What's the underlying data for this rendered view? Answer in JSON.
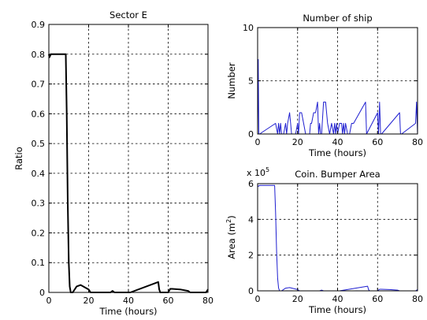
{
  "chart_data": [
    {
      "type": "line",
      "title": "Sector E",
      "xlabel": "Time (hours)",
      "ylabel": "Ratio",
      "xlim": [
        0,
        80
      ],
      "ylim": [
        0,
        0.9
      ],
      "xticks": [
        "0",
        "20",
        "40",
        "60",
        "80"
      ],
      "yticks": [
        "0",
        "0.1",
        "0.2",
        "0.3",
        "0.4",
        "0.5",
        "0.6",
        "0.7",
        "0.8",
        "0.9"
      ],
      "grid": true,
      "series": [
        {
          "color": "#000000",
          "x": [
            0,
            0.3,
            1,
            5,
            8.5,
            9,
            9.5,
            10,
            10.5,
            11,
            12,
            14,
            16,
            20,
            21,
            22,
            31,
            32,
            33,
            40,
            41,
            55,
            55.5,
            56,
            60,
            61,
            62,
            66,
            70,
            71,
            72,
            79,
            80
          ],
          "y": [
            0.8,
            0.79,
            0.8,
            0.8,
            0.8,
            0.6,
            0.3,
            0.1,
            0.02,
            0,
            0,
            0.02,
            0.025,
            0.01,
            0,
            0,
            0,
            0.005,
            0,
            0,
            0,
            0.035,
            0.01,
            0,
            0,
            0.012,
            0.012,
            0.01,
            0.005,
            0,
            0,
            0,
            0.01
          ]
        }
      ]
    },
    {
      "type": "line",
      "title": "Number of ship",
      "xlabel": "Time (hours)",
      "ylabel": "Number",
      "xlim": [
        0,
        80
      ],
      "ylim": [
        0,
        10
      ],
      "xticks": [
        "0",
        "20",
        "40",
        "60",
        "80"
      ],
      "yticks": [
        "0",
        "5",
        "10"
      ],
      "grid": true,
      "series": [
        {
          "color": "#1f1fd0",
          "x": [
            0,
            0.3,
            0.6,
            1,
            9,
            10,
            10.5,
            11,
            11.5,
            12,
            13,
            14,
            14.5,
            15,
            16,
            16.5,
            17,
            18,
            19,
            20,
            20.5,
            21,
            22,
            23,
            24,
            26,
            26.5,
            27,
            28,
            29,
            30,
            30.5,
            31,
            31.5,
            32,
            33,
            34,
            35,
            36,
            37,
            38,
            38.5,
            39,
            39.5,
            40,
            41,
            42,
            42.5,
            43,
            43.5,
            44,
            45,
            46,
            47,
            48,
            54,
            54.5,
            60,
            60.5,
            61,
            61.5,
            62,
            71,
            71.5,
            72,
            79,
            79.5,
            80
          ],
          "y": [
            0,
            7,
            0,
            0,
            1,
            0,
            1,
            0,
            1,
            0,
            0,
            1,
            0,
            1,
            2,
            1,
            0,
            0,
            0,
            1,
            0,
            2,
            2,
            1,
            0,
            0,
            1,
            1,
            2,
            2,
            3,
            0,
            1,
            0,
            0,
            3,
            3,
            1,
            0,
            1,
            0,
            1,
            0,
            1,
            0,
            1,
            1,
            0,
            1,
            0,
            1,
            0,
            0,
            1,
            1,
            3,
            0,
            2,
            0,
            3,
            0,
            0,
            2,
            0,
            0,
            1,
            3,
            0
          ]
        }
      ]
    },
    {
      "type": "line",
      "title": "Coin. Bumper Area",
      "xlabel": "Time (hours)",
      "ylabel": "Area (m",
      "ylabel_sup": "2",
      "ylabel_close": ")",
      "exponent_prefix": "x 10",
      "exponent_power": "5",
      "xlim": [
        0,
        80
      ],
      "ylim": [
        0,
        6
      ],
      "xticks": [
        "0",
        "20",
        "40",
        "60",
        "80"
      ],
      "yticks": [
        "0",
        "2",
        "4",
        "6"
      ],
      "grid": true,
      "series": [
        {
          "color": "#1f1fd0",
          "x": [
            0,
            0.3,
            1,
            5,
            8.5,
            9,
            9.5,
            10,
            10.5,
            11,
            12,
            14,
            16,
            20,
            21,
            22,
            31,
            32,
            33,
            40,
            41,
            55,
            55.5,
            56,
            60,
            61,
            62,
            66,
            70,
            71,
            72,
            79,
            80
          ],
          "y": [
            5.9,
            5.85,
            5.9,
            5.9,
            5.9,
            4.4,
            2.2,
            0.7,
            0.15,
            0,
            0,
            0.15,
            0.18,
            0.07,
            0,
            0,
            0,
            0.04,
            0,
            0,
            0,
            0.26,
            0.07,
            0,
            0,
            0.09,
            0.09,
            0.07,
            0.04,
            0,
            0,
            0,
            0.07
          ]
        }
      ]
    }
  ]
}
